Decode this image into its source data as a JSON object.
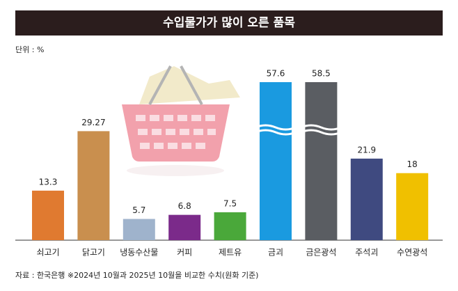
{
  "chart_data": {
    "type": "bar",
    "title": "수입물가가 많이 오른 품목",
    "unit_label": "단위 : %",
    "categories": [
      "쇠고기",
      "닭고기",
      "냉동수산물",
      "커피",
      "제트유",
      "금괴",
      "금은광석",
      "주석괴",
      "수연광석"
    ],
    "values": [
      13.3,
      29.27,
      5.7,
      6.8,
      7.5,
      57.6,
      58.5,
      21.9,
      18
    ],
    "colors": [
      "#e07a30",
      "#c98f4e",
      "#9fb3cc",
      "#7b2a8a",
      "#4aa83a",
      "#1a9ae0",
      "#5a5d62",
      "#3f4a80",
      "#f0c000"
    ],
    "source": "자료 : 한국은행 ※2024년 10월과 2025년 10월을 비교한 수치(원화 기준)"
  }
}
